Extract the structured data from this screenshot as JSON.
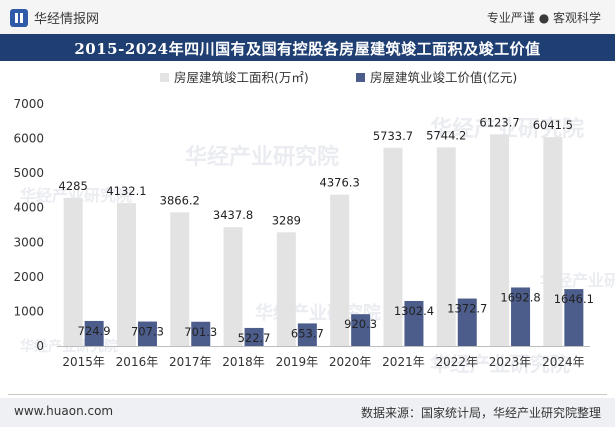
{
  "header": {
    "brand": "华经情报网",
    "slogan": "专业严谨 ● 客观科学"
  },
  "title": "2015-2024年四川国有及国有控股各房屋建筑竣工面积及竣工价值",
  "footer": {
    "site": "www.huaon.com",
    "source": "数据来源：国家统计局，华经产业研究院整理"
  },
  "watermark": "华经产业研究院",
  "chart_data": {
    "type": "bar",
    "categories": [
      "2015年",
      "2016年",
      "2017年",
      "2018年",
      "2019年",
      "2020年",
      "2021年",
      "2022年",
      "2023年",
      "2024年"
    ],
    "series": [
      {
        "name": "房屋建筑竣工面积(万㎡)",
        "color": "#e3e3e3",
        "values": [
          4285,
          4132.1,
          3866.2,
          3437.8,
          3289,
          4376.3,
          5733.7,
          5744.2,
          6123.7,
          6041.5
        ],
        "labels": [
          "4285",
          "4132.1",
          "3866.2",
          "3437.8",
          "3289",
          "4376.3",
          "5733.7",
          "5744.2",
          "6123.7",
          "6041.5"
        ]
      },
      {
        "name": "房屋建筑业竣工价值(亿元)",
        "color": "#4c5d8c",
        "values": [
          724.9,
          707.3,
          701.3,
          522.7,
          653.7,
          920.3,
          1302.4,
          1372.7,
          1692.8,
          1646.1
        ],
        "labels": [
          "724.9",
          "707.3",
          "701.3",
          "522.7",
          "653.7",
          "920.3",
          "1302.4",
          "1372.7",
          "1692.8",
          "1646.1"
        ]
      }
    ],
    "yticks": [
      "0",
      "1000",
      "2000",
      "3000",
      "4000",
      "5000",
      "6000",
      "7000"
    ],
    "ylim": [
      0,
      7000
    ],
    "grid": false,
    "legend": "top-center"
  }
}
